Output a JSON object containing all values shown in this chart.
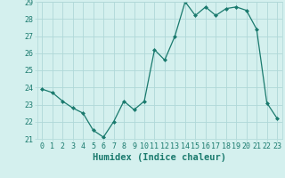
{
  "x": [
    0,
    1,
    2,
    3,
    4,
    5,
    6,
    7,
    8,
    9,
    10,
    11,
    12,
    13,
    14,
    15,
    16,
    17,
    18,
    19,
    20,
    21,
    22,
    23
  ],
  "y": [
    23.9,
    23.7,
    23.2,
    22.8,
    22.5,
    21.5,
    21.1,
    22.0,
    23.2,
    22.7,
    23.2,
    26.2,
    25.6,
    27.0,
    29.0,
    28.2,
    28.7,
    28.2,
    28.6,
    28.7,
    28.5,
    27.4,
    23.1,
    22.2
  ],
  "xlabel": "Humidex (Indice chaleur)",
  "ylim": [
    21,
    29
  ],
  "xlim": [
    -0.5,
    23.5
  ],
  "yticks": [
    21,
    22,
    23,
    24,
    25,
    26,
    27,
    28,
    29
  ],
  "xticks": [
    0,
    1,
    2,
    3,
    4,
    5,
    6,
    7,
    8,
    9,
    10,
    11,
    12,
    13,
    14,
    15,
    16,
    17,
    18,
    19,
    20,
    21,
    22,
    23
  ],
  "line_color": "#1a7a6e",
  "marker": "D",
  "marker_size": 2.0,
  "bg_color": "#d4f0ee",
  "grid_color": "#b0d8d8",
  "xlabel_fontsize": 7.5,
  "tick_fontsize": 6.0,
  "linewidth": 0.9
}
